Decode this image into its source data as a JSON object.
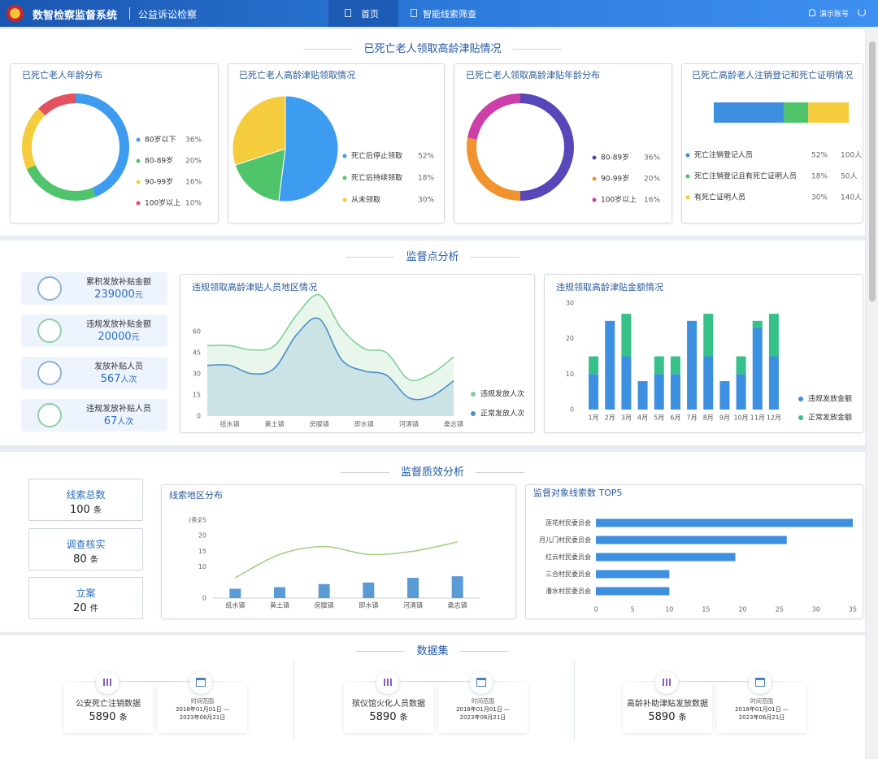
{
  "header": {
    "title": "数智检察监督系统",
    "subtitle": "公益诉讼检察",
    "nav": [
      "首页",
      "智能线索筛查"
    ],
    "user": "演示账号"
  },
  "sections": [
    "已死亡老人领取高龄津贴情况",
    "监督点分析",
    "监督质效分析",
    "数据集"
  ],
  "kpis": [
    {
      "label": "累积发放补贴金额",
      "value": 239000,
      "unit": "元"
    },
    {
      "label": "违规发放补贴金额",
      "value": 20000,
      "unit": "元"
    },
    {
      "label": "发放补贴人员",
      "value": 567,
      "unit": "人次"
    },
    {
      "label": "违规发放补贴人员",
      "value": 67,
      "unit": "人次"
    }
  ],
  "quality_kpis": [
    {
      "label": "线索总数",
      "value": 100,
      "unit": "条"
    },
    {
      "label": "调查核实",
      "value": 80,
      "unit": "条"
    },
    {
      "label": "立案",
      "value": 20,
      "unit": "件"
    }
  ],
  "datasets": [
    {
      "name": "公安死亡注销数据",
      "count": 5890,
      "unit": "条",
      "time_label": "时间范围",
      "range_start": "2018年01月01日 —",
      "range_end": "2023年06月21日"
    },
    {
      "name": "殡仪馆火化人员数据",
      "count": 5890,
      "unit": "条",
      "time_label": "时间范围",
      "range_start": "2018年01月01日 —",
      "range_end": "2023年06月21日"
    },
    {
      "name": "高龄补助津贴发放数据",
      "count": 5890,
      "unit": "条",
      "time_label": "时间范围",
      "range_start": "2018年01月01日 —",
      "range_end": "2023年06月21日"
    }
  ],
  "chart_data": [
    {
      "type": "pie",
      "donut": true,
      "title": "已死亡老人年龄分布",
      "categories": [
        "80岁以下",
        "80-89岁",
        "90-99岁",
        "100岁以上"
      ],
      "values": [
        36,
        20,
        16,
        10
      ],
      "value_labels": [
        "36%",
        "20%",
        "16%",
        "10%"
      ],
      "colors": [
        "#3d9cf0",
        "#4fc46b",
        "#f5cd3c",
        "#e5525f"
      ]
    },
    {
      "type": "pie",
      "donut": false,
      "title": "已死亡老人高龄津贴领取情况",
      "categories": [
        "死亡后停止领取",
        "死亡后持续领取",
        "从未领取"
      ],
      "values": [
        52,
        18,
        30
      ],
      "value_labels": [
        "52%",
        "18%",
        "30%"
      ],
      "colors": [
        "#3d9cf0",
        "#4fc46b",
        "#f5cd3c"
      ]
    },
    {
      "type": "pie",
      "donut": true,
      "title": "已死亡老人领取高龄津贴年龄分布",
      "categories": [
        "80-89岁",
        "90-99岁",
        "100岁以上"
      ],
      "values": [
        36,
        20,
        16
      ],
      "value_labels": [
        "36%",
        "20%",
        "16%"
      ],
      "colors": [
        "#5747b8",
        "#f0922e",
        "#cc3fa9"
      ]
    },
    {
      "type": "proportion",
      "title": "已死亡高龄老人注销登记和死亡证明情况",
      "categories": [
        "死亡注销登记人员",
        "死亡注销登记且有死亡证明人员",
        "有死亡证明人员"
      ],
      "values": [
        52,
        18,
        30
      ],
      "value_labels": [
        "52%",
        "18%",
        "30%"
      ],
      "counts": [
        "100人",
        "50人",
        "140人"
      ],
      "colors": [
        "#3d8fe0",
        "#4fc46b",
        "#f5cd3c"
      ]
    },
    {
      "type": "area",
      "title": "违规领取高龄津贴人员地区情况",
      "categories": [
        null,
        "纸水镇",
        null,
        "黄土镇",
        null,
        "房膛镇",
        null,
        "即水镇",
        null,
        "河清镇",
        null,
        "桑志镇"
      ],
      "series": [
        {
          "name": "违规发放人次",
          "color": "#7fcf95",
          "values": [
            50,
            50,
            47,
            50,
            72,
            86,
            62,
            48,
            45,
            26,
            30,
            42
          ]
        },
        {
          "name": "正常发放人次",
          "color": "#4a8fc8",
          "values": [
            36,
            36,
            30,
            34,
            58,
            69,
            40,
            32,
            29,
            13,
            14,
            25
          ]
        }
      ],
      "ylim": [
        0,
        90
      ],
      "yticks": [
        0,
        15,
        30,
        45,
        60
      ]
    },
    {
      "type": "bar",
      "stacked": true,
      "horizontal": false,
      "title": "违规领取高龄津贴金额情况",
      "categories": [
        "1月",
        "2月",
        "3月",
        "4月",
        "5月",
        "6月",
        "7月",
        "8月",
        "9月",
        "10月",
        "11月",
        "12月"
      ],
      "series": [
        {
          "name": "违规发放金额",
          "color": "#3d8fe0",
          "values": [
            10,
            25,
            15,
            8,
            10,
            10,
            25,
            15,
            8,
            10,
            23,
            15
          ]
        },
        {
          "name": "正常发放金额",
          "color": "#36c08a",
          "values": [
            5,
            0,
            12,
            0,
            5,
            5,
            0,
            12,
            0,
            5,
            2,
            12
          ]
        }
      ],
      "ylim": [
        0,
        30
      ],
      "yticks": [
        0,
        10,
        20,
        30
      ]
    },
    {
      "type": "combo",
      "title": "线索地区分布",
      "y_label": "(条)",
      "categories": [
        "纸水镇",
        "黄土镇",
        "房膛镇",
        "即水镇",
        "河清镇",
        "桑志镇"
      ],
      "series": [
        {
          "kind": "bar",
          "color": "#5b9bd5",
          "values": [
            3,
            3.5,
            4.5,
            5,
            6.5,
            7
          ]
        },
        {
          "kind": "line",
          "color": "#9fd07f",
          "values": [
            6.5,
            14,
            16.5,
            14,
            15,
            18
          ]
        }
      ],
      "ylim": [
        0,
        25
      ],
      "yticks": [
        0,
        10,
        15,
        20,
        25
      ]
    },
    {
      "type": "bar",
      "stacked": false,
      "horizontal": true,
      "title": "监督对象线索数 TOP5",
      "categories": [
        "莲花村民委员会",
        "月儿门村民委员会",
        "红云村民委员会",
        "三合村民委员会",
        "潘水村民委员会"
      ],
      "values": [
        35,
        26,
        19,
        10,
        10
      ],
      "color": "#3d8fe0",
      "xlim": [
        0,
        35
      ],
      "xticks": [
        0,
        5,
        10,
        15,
        20,
        25,
        30,
        35
      ]
    }
  ]
}
